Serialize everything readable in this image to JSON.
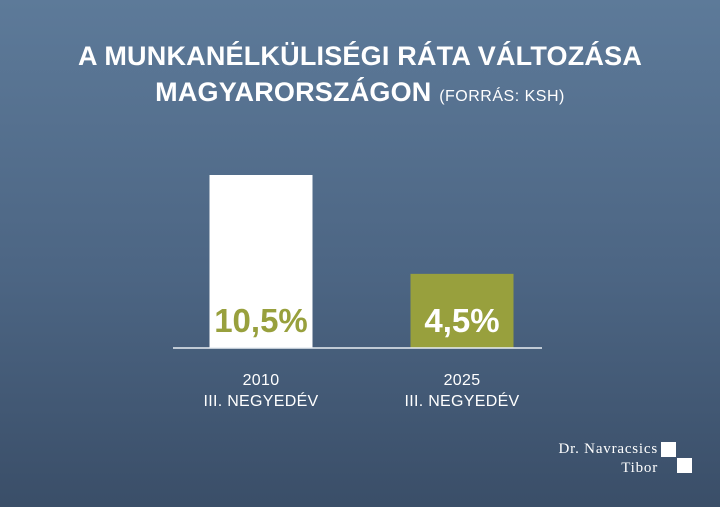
{
  "title": {
    "line1": "A MUNKANÉLKÜLISÉGI RÁTA VÁLTOZÁSA",
    "line2": "MAGYARORSZÁGON",
    "source": "(FORRÁS: KSH)"
  },
  "chart_data": {
    "type": "bar",
    "categories": [
      {
        "year": "2010",
        "quarter": "III. NEGYEDÉV"
      },
      {
        "year": "2025",
        "quarter": "III. NEGYEDÉV"
      }
    ],
    "values": [
      10.5,
      4.5
    ],
    "value_labels": [
      "10,5%",
      "4,5%"
    ],
    "bar_colors": [
      "#ffffff",
      "#98a03d"
    ],
    "label_colors": [
      "#98a03d",
      "#ffffff"
    ],
    "ylim": [
      0,
      10.5
    ],
    "xlabel": "",
    "ylabel": "",
    "grid": false
  },
  "brand": {
    "line1": "Dr. Navracsics",
    "line2": "Tibor"
  }
}
